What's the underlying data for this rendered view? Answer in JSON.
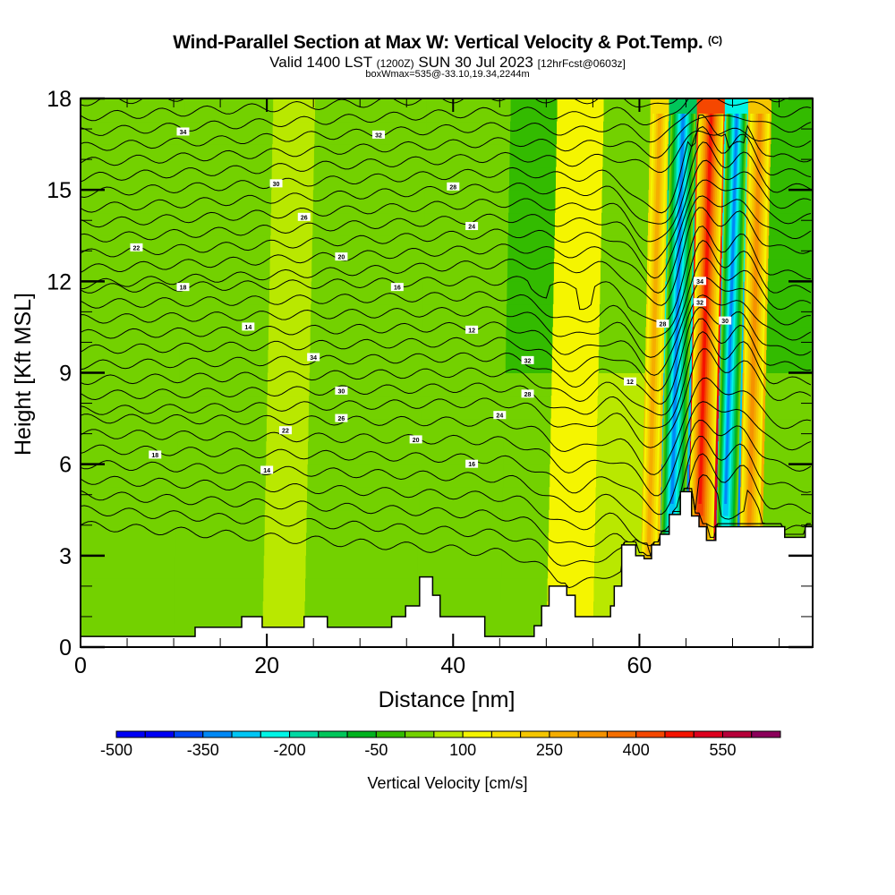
{
  "header": {
    "title": "Wind-Parallel Section at Max W: Vertical Velocity & Pot.Temp.",
    "copyright": "(C)",
    "valid_prefix": "Valid 1400 LST",
    "valid_utc": "(1200Z)",
    "valid_date": "SUN 30 Jul 2023",
    "forecast": "[12hrFcst@0603z]",
    "box_info": "boxWmax=535@-33.10,19.34,2244m"
  },
  "chart_data": {
    "type": "heatmap",
    "title": "Wind-Parallel Section at Max W: Vertical Velocity & Pot.Temp.",
    "xlabel": "Distance [nm]",
    "ylabel": "Height [Kft MSL]",
    "xlim": [
      0,
      78.6
    ],
    "ylim": [
      0,
      18
    ],
    "x_ticks": [
      "0",
      "20",
      "40",
      "60"
    ],
    "x_tick_values": [
      0,
      20,
      40,
      60
    ],
    "x_minor_step": 5,
    "y_ticks": [
      "0",
      "3",
      "6",
      "9",
      "12",
      "15",
      "18"
    ],
    "y_tick_values": [
      0,
      3,
      6,
      9,
      12,
      15,
      18
    ],
    "y_minor_step": 1,
    "colorbar": {
      "label": "Vertical Velocity [cm/s]",
      "min": -500,
      "max": 650,
      "step": 50,
      "tick_labels": [
        "-500",
        "-350",
        "-200",
        "-50",
        "100",
        "250",
        "400",
        "550"
      ],
      "tick_values": [
        -500,
        -350,
        -200,
        -50,
        100,
        250,
        400,
        550
      ],
      "colors": [
        "#0000f5",
        "#0047f5",
        "#0088f5",
        "#00c6f5",
        "#00f5e6",
        "#00d9a3",
        "#00c65a",
        "#00b21e",
        "#33bb00",
        "#73d100",
        "#b9e800",
        "#f5f500",
        "#f5de00",
        "#f5c600",
        "#f5ad00",
        "#f59200",
        "#f56e00",
        "#f54700",
        "#f51400",
        "#dd001e",
        "#b60039",
        "#8b005a"
      ]
    },
    "vertical_velocity_bands": [
      {
        "x_start": 0,
        "x_end": 10,
        "w_upper": -50,
        "w_lower": 0
      },
      {
        "x_start": 10,
        "x_end": 19.5,
        "w_upper": -50,
        "w_lower": -50
      },
      {
        "x_start": 19.5,
        "x_end": 24,
        "w_upper": 0,
        "w_lower": 0
      },
      {
        "x_start": 24,
        "x_end": 36,
        "w_upper": -50,
        "w_lower": 0
      },
      {
        "x_start": 36,
        "x_end": 45,
        "w_upper": 0,
        "w_lower": -50
      },
      {
        "x_start": 45,
        "x_end": 50,
        "w_upper": -100,
        "w_lower": 0
      },
      {
        "x_start": 50,
        "x_end": 55,
        "w_upper": 50,
        "w_lower": 100
      },
      {
        "x_start": 55,
        "x_end": 60,
        "w_upper": -50,
        "w_lower": 50
      },
      {
        "x_start": 60,
        "x_end": 62,
        "w_upper": 100,
        "w_lower": 200
      },
      {
        "x_start": 62,
        "x_end": 65,
        "w_upper": -150,
        "w_lower": -450
      },
      {
        "x_start": 65,
        "x_end": 68,
        "w_upper": 350,
        "w_lower": 535
      },
      {
        "x_start": 68,
        "x_end": 70.5,
        "w_upper": -250,
        "w_lower": -400
      },
      {
        "x_start": 70.5,
        "x_end": 73,
        "w_upper": 150,
        "w_lower": 250
      },
      {
        "x_start": 73,
        "x_end": 78.6,
        "w_upper": -100,
        "w_lower": 0
      }
    ],
    "max_w": 535,
    "pot_temp_contour_labels": [
      "34",
      "32",
      "30",
      "28",
      "26",
      "24",
      "22",
      "20",
      "18",
      "16",
      "14",
      "12"
    ],
    "terrain_kft": [
      {
        "x": 0,
        "h": 0.35
      },
      {
        "x": 12.3,
        "h": 0.65
      },
      {
        "x": 17.3,
        "h": 1.0
      },
      {
        "x": 19.5,
        "h": 0.65
      },
      {
        "x": 24,
        "h": 1.0
      },
      {
        "x": 26.5,
        "h": 0.65
      },
      {
        "x": 33.4,
        "h": 1.0
      },
      {
        "x": 34.9,
        "h": 1.35
      },
      {
        "x": 36.4,
        "h": 2.3
      },
      {
        "x": 37.8,
        "h": 1.7
      },
      {
        "x": 38.6,
        "h": 1.0
      },
      {
        "x": 43.4,
        "h": 0.35
      },
      {
        "x": 48.7,
        "h": 0.7
      },
      {
        "x": 49.5,
        "h": 1.35
      },
      {
        "x": 50.3,
        "h": 2.0
      },
      {
        "x": 52.2,
        "h": 1.7
      },
      {
        "x": 53.1,
        "h": 1.0
      },
      {
        "x": 56.9,
        "h": 1.35
      },
      {
        "x": 57.3,
        "h": 2.0
      },
      {
        "x": 58.1,
        "h": 3.35
      },
      {
        "x": 59.6,
        "h": 3.0
      },
      {
        "x": 60.5,
        "h": 2.9
      },
      {
        "x": 61.3,
        "h": 3.35
      },
      {
        "x": 62.2,
        "h": 3.7
      },
      {
        "x": 63.2,
        "h": 4.35
      },
      {
        "x": 64.4,
        "h": 5.1
      },
      {
        "x": 65.6,
        "h": 4.3
      },
      {
        "x": 66.4,
        "h": 3.95
      },
      {
        "x": 67.2,
        "h": 3.5
      },
      {
        "x": 68.2,
        "h": 3.95
      },
      {
        "x": 75.6,
        "h": 3.6
      },
      {
        "x": 77.8,
        "h": 3.95
      }
    ]
  }
}
